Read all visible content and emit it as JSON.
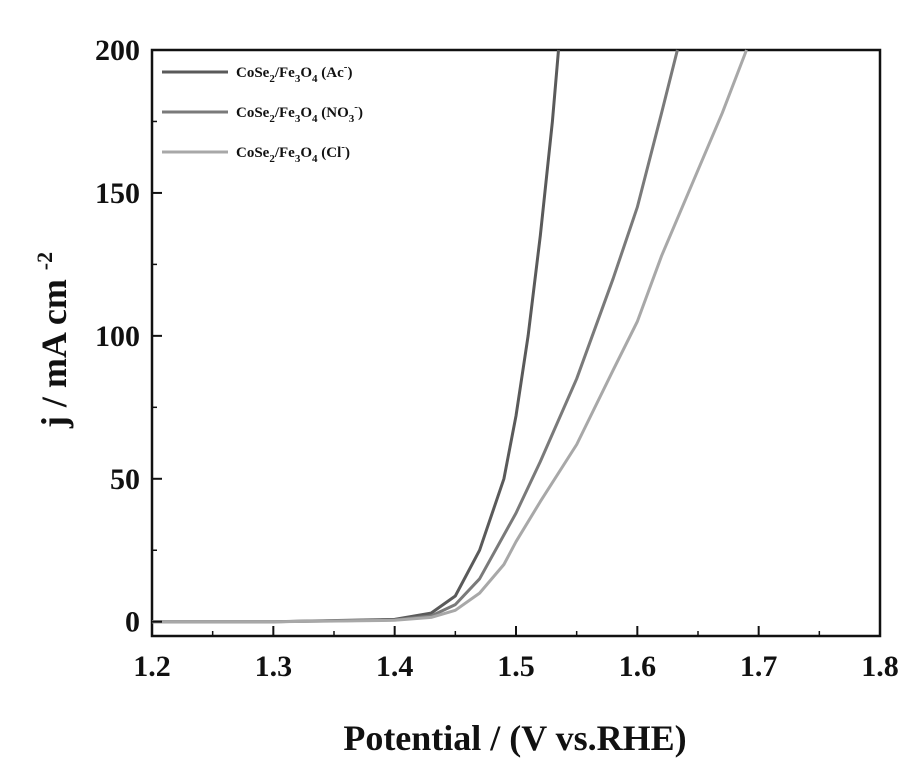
{
  "chart_data": {
    "type": "line",
    "title": "",
    "xlabel": "Potential / (V vs.RHE)",
    "ylabel": "j / mA cm",
    "ylabel_sup": "-2",
    "xlim": [
      1.2,
      1.8
    ],
    "ylim": [
      -5,
      200
    ],
    "xticks": [
      "1.2",
      "1.3",
      "1.4",
      "1.5",
      "1.6",
      "1.7",
      "1.8"
    ],
    "yticks": [
      "0",
      "50",
      "100",
      "150",
      "200"
    ],
    "legend_position": "top-left",
    "grid": false,
    "colors": {
      "axis": "#111111",
      "Ac": "#5a5a5a",
      "NO3": "#7a7a7a",
      "Cl": "#a8a8a8"
    },
    "series": [
      {
        "key": "Ac",
        "legend": {
          "base": "CoSe",
          "sub1": "2",
          "mid": "/Fe",
          "sub2": "3",
          "o": "O",
          "sub3": "4",
          "paren_open": " (Ac",
          "sup": "-",
          "paren_close": ")"
        },
        "x": [
          1.2,
          1.3,
          1.4,
          1.43,
          1.45,
          1.47,
          1.49,
          1.5,
          1.51,
          1.52,
          1.53,
          1.535
        ],
        "y": [
          0,
          0,
          0.8,
          3,
          9,
          25,
          50,
          72,
          100,
          135,
          175,
          200
        ]
      },
      {
        "key": "NO3",
        "legend": {
          "base": "CoSe",
          "sub1": "2",
          "mid": "/Fe",
          "sub2": "3",
          "o": "O",
          "sub3": "4",
          "paren_open": " (NO",
          "sub4": "3",
          "sup": "-",
          "paren_close": ")"
        },
        "x": [
          1.2,
          1.3,
          1.4,
          1.43,
          1.45,
          1.47,
          1.5,
          1.52,
          1.55,
          1.58,
          1.6,
          1.62,
          1.633
        ],
        "y": [
          0,
          0,
          0.6,
          2,
          6,
          15,
          38,
          56,
          85,
          120,
          145,
          178,
          200
        ]
      },
      {
        "key": "Cl",
        "legend": {
          "base": "CoSe",
          "sub1": "2",
          "mid": "/Fe",
          "sub2": "3",
          "o": "O",
          "sub3": "4",
          "paren_open": " (Cl",
          "sup": "-",
          "paren_close": ")"
        },
        "x": [
          1.2,
          1.3,
          1.4,
          1.43,
          1.45,
          1.47,
          1.49,
          1.5,
          1.52,
          1.55,
          1.58,
          1.6,
          1.62,
          1.65,
          1.67,
          1.69
        ],
        "y": [
          0,
          0,
          0.5,
          1.5,
          4,
          10,
          20,
          28,
          42,
          62,
          88,
          105,
          128,
          158,
          178,
          200
        ]
      }
    ]
  }
}
